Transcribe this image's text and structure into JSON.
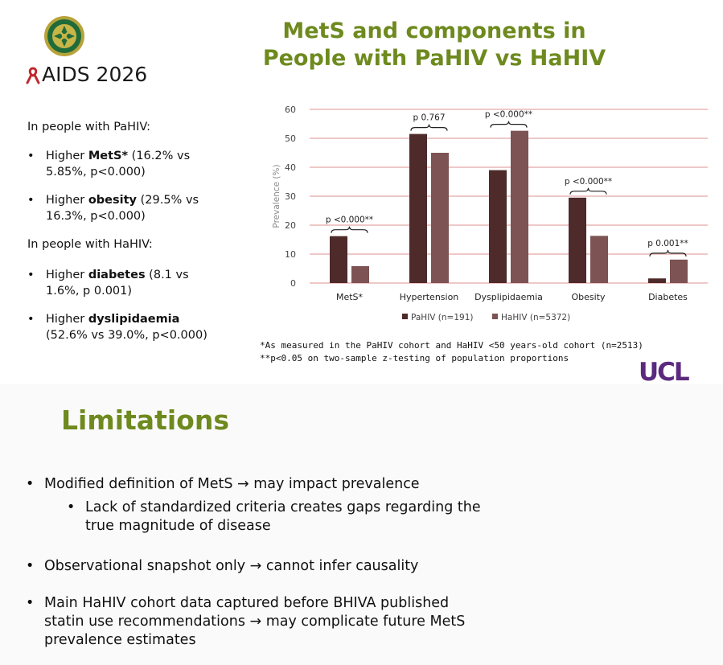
{
  "header": {
    "event_name": "AIDS 2026",
    "title_line1": "MetS and components in",
    "title_line2": "People with PaHIV vs HaHIV"
  },
  "left_panel": {
    "pahiv_heading": "In people with PaHIV:",
    "pahiv_bullets": [
      {
        "bold": "MetS*",
        "pre": "Higher ",
        "post": " (16.2% vs",
        "line2": "5.85%, p<0.000)"
      },
      {
        "bold": "obesity",
        "pre": "Higher ",
        "post": " (29.5% vs",
        "line2": "16.3%, p<0.000)"
      }
    ],
    "hahiv_heading": "In people with HaHIV:",
    "hahiv_bullets": [
      {
        "bold": "diabetes",
        "pre": "Higher ",
        "post": " (8.1 vs",
        "line2": "1.6%, p 0.001)"
      },
      {
        "bold": "dyslipidaemia",
        "pre": "Higher ",
        "post": "",
        "line2": "(52.6% vs 39.0%, p<0.000)"
      }
    ]
  },
  "chart_data": {
    "type": "bar",
    "categories": [
      "MetS*",
      "Hypertension",
      "Dysplipidaemia",
      "Obesity",
      "Diabetes"
    ],
    "series": [
      {
        "name": "PaHIV (n=191)",
        "color": "#4e2a2a",
        "values": [
          16.2,
          51.5,
          39.0,
          29.5,
          1.6
        ]
      },
      {
        "name": "HaHIV (n=5372)",
        "color": "#7d5353",
        "values": [
          5.85,
          45.0,
          52.6,
          16.3,
          8.1
        ]
      }
    ],
    "ylabel": "Prevalence (%)",
    "ylim": [
      0,
      60
    ],
    "yticks": [
      "0",
      "10",
      "20",
      "30",
      "40",
      "50",
      "60"
    ],
    "grid": true,
    "gridline_color": "#e3a8a8",
    "legend_position": "bottom",
    "annotations": [
      "p <0.000**",
      "p 0.767",
      "p <0.000**",
      "p <0.000**",
      "p 0.001**"
    ]
  },
  "footnotes": {
    "note1": "*As measured in the PaHIV cohort and HaHIV <50 years-old cohort (n=2513)",
    "note2": "**p<0.05 on two-sample z-testing of population proportions"
  },
  "brand": {
    "ucl_logo": "UCL"
  },
  "limitations": {
    "title": "Limitations",
    "items": [
      {
        "text": "Modified definition of MetS → may impact prevalence"
      },
      {
        "text_l1": "Lack of standardized criteria creates gaps regarding the",
        "text_l2": "true magnitude of disease"
      },
      {
        "text": "Observational snapshot only → cannot infer causality"
      },
      {
        "text_l1": "Main HaHIV cohort data captured before BHIVA published",
        "text_l2": "statin use recommendations → may complicate future MetS",
        "text_l3": "prevalence estimates"
      }
    ]
  },
  "colors": {
    "title_green": "#6e8a1e",
    "ucl_purple": "#5b2a7e",
    "ribbon_red": "#c0282d"
  }
}
